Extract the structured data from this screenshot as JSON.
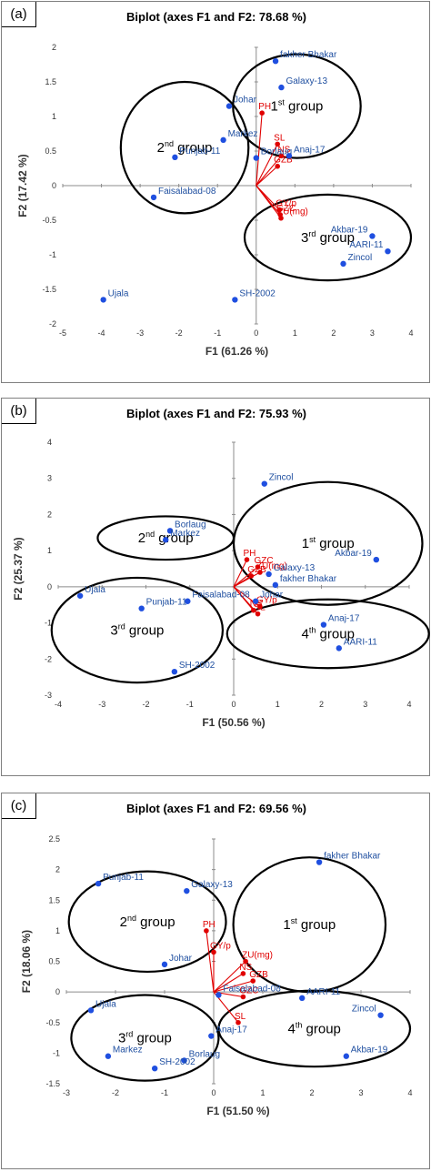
{
  "chart_data": [
    {
      "type": "scatter",
      "panel_label": "(a)",
      "title": "Biplot (axes F1 and F2: 78.68 %)",
      "xlabel": "F1 (61.26 %)",
      "ylabel": "F2 (17.42 %)",
      "xlim": [
        -5,
        4
      ],
      "ylim": [
        -2,
        2
      ],
      "xticks": [
        -5,
        -4,
        -3,
        -2,
        -1,
        0,
        1,
        2,
        3,
        4
      ],
      "yticks": [
        -2,
        -1.5,
        -1,
        -0.5,
        0,
        0.5,
        1,
        1.5,
        2
      ],
      "grid": false,
      "genotypes": [
        {
          "name": "fakher Bhakar",
          "x": 0.5,
          "y": 1.8
        },
        {
          "name": "Galaxy-13",
          "x": 0.65,
          "y": 1.42
        },
        {
          "name": "Johar",
          "x": -0.7,
          "y": 1.15
        },
        {
          "name": "Markez",
          "x": -0.85,
          "y": 0.66
        },
        {
          "name": "Punjab-11",
          "x": -2.1,
          "y": 0.41
        },
        {
          "name": "Borlaug",
          "x": 0.0,
          "y": 0.4
        },
        {
          "name": "Anaj-17",
          "x": 0.85,
          "y": 0.43
        },
        {
          "name": "Faisalabad-08",
          "x": -2.65,
          "y": -0.17
        },
        {
          "name": "Akbar-19",
          "x": 3.0,
          "y": -0.73
        },
        {
          "name": "AARI-11",
          "x": 3.4,
          "y": -0.95
        },
        {
          "name": "Zincol",
          "x": 2.25,
          "y": -1.13
        },
        {
          "name": "Ujala",
          "x": -3.95,
          "y": -1.65
        },
        {
          "name": "SH-2002",
          "x": -0.55,
          "y": -1.65
        }
      ],
      "variables": [
        {
          "name": "PH",
          "x": 0.15,
          "y": 1.05
        },
        {
          "name": "SL",
          "x": 0.55,
          "y": 0.6
        },
        {
          "name": "NS",
          "x": 0.65,
          "y": 0.43
        },
        {
          "name": "GZB",
          "x": 0.55,
          "y": 0.28
        },
        {
          "name": "GY/p",
          "x": 0.6,
          "y": -0.35
        },
        {
          "name": "GZC",
          "x": 0.62,
          "y": -0.42
        },
        {
          "name": "ZU(mg)",
          "x": 0.64,
          "y": -0.47
        }
      ],
      "groups": [
        {
          "label": "1",
          "suffix": "st",
          "word": "group",
          "cx": 1.05,
          "cy": 1.15,
          "rx": 1.65,
          "ry": 0.75
        },
        {
          "label": "2",
          "suffix": "nd",
          "word": "group",
          "cx": -1.85,
          "cy": 0.55,
          "rx": 1.65,
          "ry": 0.95
        },
        {
          "label": "3",
          "suffix": "rd",
          "word": "group",
          "cx": 1.85,
          "cy": -0.75,
          "rx": 2.15,
          "ry": 0.62
        }
      ]
    },
    {
      "type": "scatter",
      "panel_label": "(b)",
      "title": "Biplot (axes F1 and F2: 75.93 %)",
      "xlabel": "F1 (50.56 %)",
      "ylabel": "F2 (25.37 %)",
      "xlim": [
        -4,
        4
      ],
      "ylim": [
        -3,
        4
      ],
      "xticks": [
        -4,
        -3,
        -2,
        -1,
        0,
        1,
        2,
        3,
        4
      ],
      "yticks": [
        -3,
        -2,
        -1,
        0,
        1,
        2,
        3,
        4
      ],
      "grid": false,
      "genotypes": [
        {
          "name": "Zincol",
          "x": 0.7,
          "y": 2.85
        },
        {
          "name": "Borlaug",
          "x": -1.45,
          "y": 1.55
        },
        {
          "name": "Markez",
          "x": -1.55,
          "y": 1.3
        },
        {
          "name": "Akbar-19",
          "x": 3.25,
          "y": 0.75
        },
        {
          "name": "Galaxy-13",
          "x": 0.8,
          "y": 0.35
        },
        {
          "name": "fakher Bhakar",
          "x": 0.95,
          "y": 0.05
        },
        {
          "name": "Ujala",
          "x": -3.5,
          "y": -0.25
        },
        {
          "name": "Faisalabad-08",
          "x": -1.05,
          "y": -0.4
        },
        {
          "name": "Punjab-11",
          "x": -2.1,
          "y": -0.6
        },
        {
          "name": "Johar",
          "x": 0.5,
          "y": -0.4
        },
        {
          "name": "Anaj-17",
          "x": 2.05,
          "y": -1.05
        },
        {
          "name": "AARI-11",
          "x": 2.4,
          "y": -1.7
        },
        {
          "name": "SH-2002",
          "x": -1.35,
          "y": -2.35
        }
      ],
      "variables": [
        {
          "name": "PH",
          "x": 0.3,
          "y": 0.75
        },
        {
          "name": "GZC",
          "x": 0.55,
          "y": 0.55
        },
        {
          "name": "ZU(mg)",
          "x": 0.6,
          "y": 0.4
        },
        {
          "name": "GZB",
          "x": 0.4,
          "y": 0.3
        },
        {
          "name": "GY/p",
          "x": 0.6,
          "y": -0.55
        },
        {
          "name": "NS",
          "x": 0.45,
          "y": -0.65
        },
        {
          "name": "SL",
          "x": 0.55,
          "y": -0.75
        }
      ],
      "groups": [
        {
          "label": "1",
          "suffix": "st",
          "word": "group",
          "cx": 2.15,
          "cy": 1.2,
          "rx": 2.15,
          "ry": 1.7
        },
        {
          "label": "2",
          "suffix": "nd",
          "word": "group",
          "cx": -1.55,
          "cy": 1.35,
          "rx": 1.55,
          "ry": 0.6
        },
        {
          "label": "3",
          "suffix": "rd",
          "word": "group",
          "cx": -2.2,
          "cy": -1.2,
          "rx": 1.95,
          "ry": 1.45
        },
        {
          "label": "4",
          "suffix": "th",
          "word": "group",
          "cx": 2.15,
          "cy": -1.3,
          "rx": 2.3,
          "ry": 0.95
        }
      ]
    },
    {
      "type": "scatter",
      "panel_label": "(c)",
      "title": "Biplot (axes F1 and F2: 69.56 %)",
      "xlabel": "F1 (51.50 %)",
      "ylabel": "F2 (18.06 %)",
      "xlim": [
        -3,
        4
      ],
      "ylim": [
        -1.5,
        2.5
      ],
      "xticks": [
        -3,
        -2,
        -1,
        0,
        1,
        2,
        3,
        4
      ],
      "yticks": [
        -1.5,
        -1,
        -0.5,
        0,
        0.5,
        1,
        1.5,
        2,
        2.5
      ],
      "grid": false,
      "genotypes": [
        {
          "name": "fakher Bhakar",
          "x": 2.15,
          "y": 2.12
        },
        {
          "name": "Punjab-11",
          "x": -2.35,
          "y": 1.77
        },
        {
          "name": "Galaxy-13",
          "x": -0.55,
          "y": 1.65
        },
        {
          "name": "Johar",
          "x": -1.0,
          "y": 0.45
        },
        {
          "name": "Ujala",
          "x": -2.5,
          "y": -0.3
        },
        {
          "name": "Faisalabad-08",
          "x": 0.1,
          "y": -0.05
        },
        {
          "name": "AARI-11",
          "x": 1.8,
          "y": -0.1
        },
        {
          "name": "Zincol",
          "x": 3.4,
          "y": -0.38
        },
        {
          "name": "Anaj-17",
          "x": -0.05,
          "y": -0.72
        },
        {
          "name": "Markez",
          "x": -2.15,
          "y": -1.05
        },
        {
          "name": "Borlaug",
          "x": -0.6,
          "y": -1.12
        },
        {
          "name": "Akbar-19",
          "x": 2.7,
          "y": -1.05
        },
        {
          "name": "SH-2002",
          "x": -1.2,
          "y": -1.25
        }
      ],
      "variables": [
        {
          "name": "PH",
          "x": -0.15,
          "y": 1.0
        },
        {
          "name": "GY/p",
          "x": 0.0,
          "y": 0.65
        },
        {
          "name": "ZU(mg)",
          "x": 0.65,
          "y": 0.5
        },
        {
          "name": "NS",
          "x": 0.6,
          "y": 0.3
        },
        {
          "name": "GZB",
          "x": 0.8,
          "y": 0.18
        },
        {
          "name": "GZC",
          "x": 0.6,
          "y": -0.08
        },
        {
          "name": "SL",
          "x": 0.5,
          "y": -0.5
        }
      ],
      "groups": [
        {
          "label": "1",
          "suffix": "st",
          "word": "group",
          "cx": 1.95,
          "cy": 1.1,
          "rx": 1.55,
          "ry": 1.1
        },
        {
          "label": "2",
          "suffix": "nd",
          "word": "group",
          "cx": -1.35,
          "cy": 1.15,
          "rx": 1.6,
          "ry": 0.82
        },
        {
          "label": "3",
          "suffix": "rd",
          "word": "group",
          "cx": -1.4,
          "cy": -0.75,
          "rx": 1.5,
          "ry": 0.7
        },
        {
          "label": "4",
          "suffix": "th",
          "word": "group",
          "cx": 2.05,
          "cy": -0.6,
          "rx": 1.95,
          "ry": 0.62
        }
      ]
    }
  ],
  "colors": {
    "genotype_point": "#1f4fe0",
    "genotype_label": "#1f4fa0",
    "variable_vector": "#e00000",
    "ellipse": "#000000",
    "axis": "#8c8c8c"
  }
}
